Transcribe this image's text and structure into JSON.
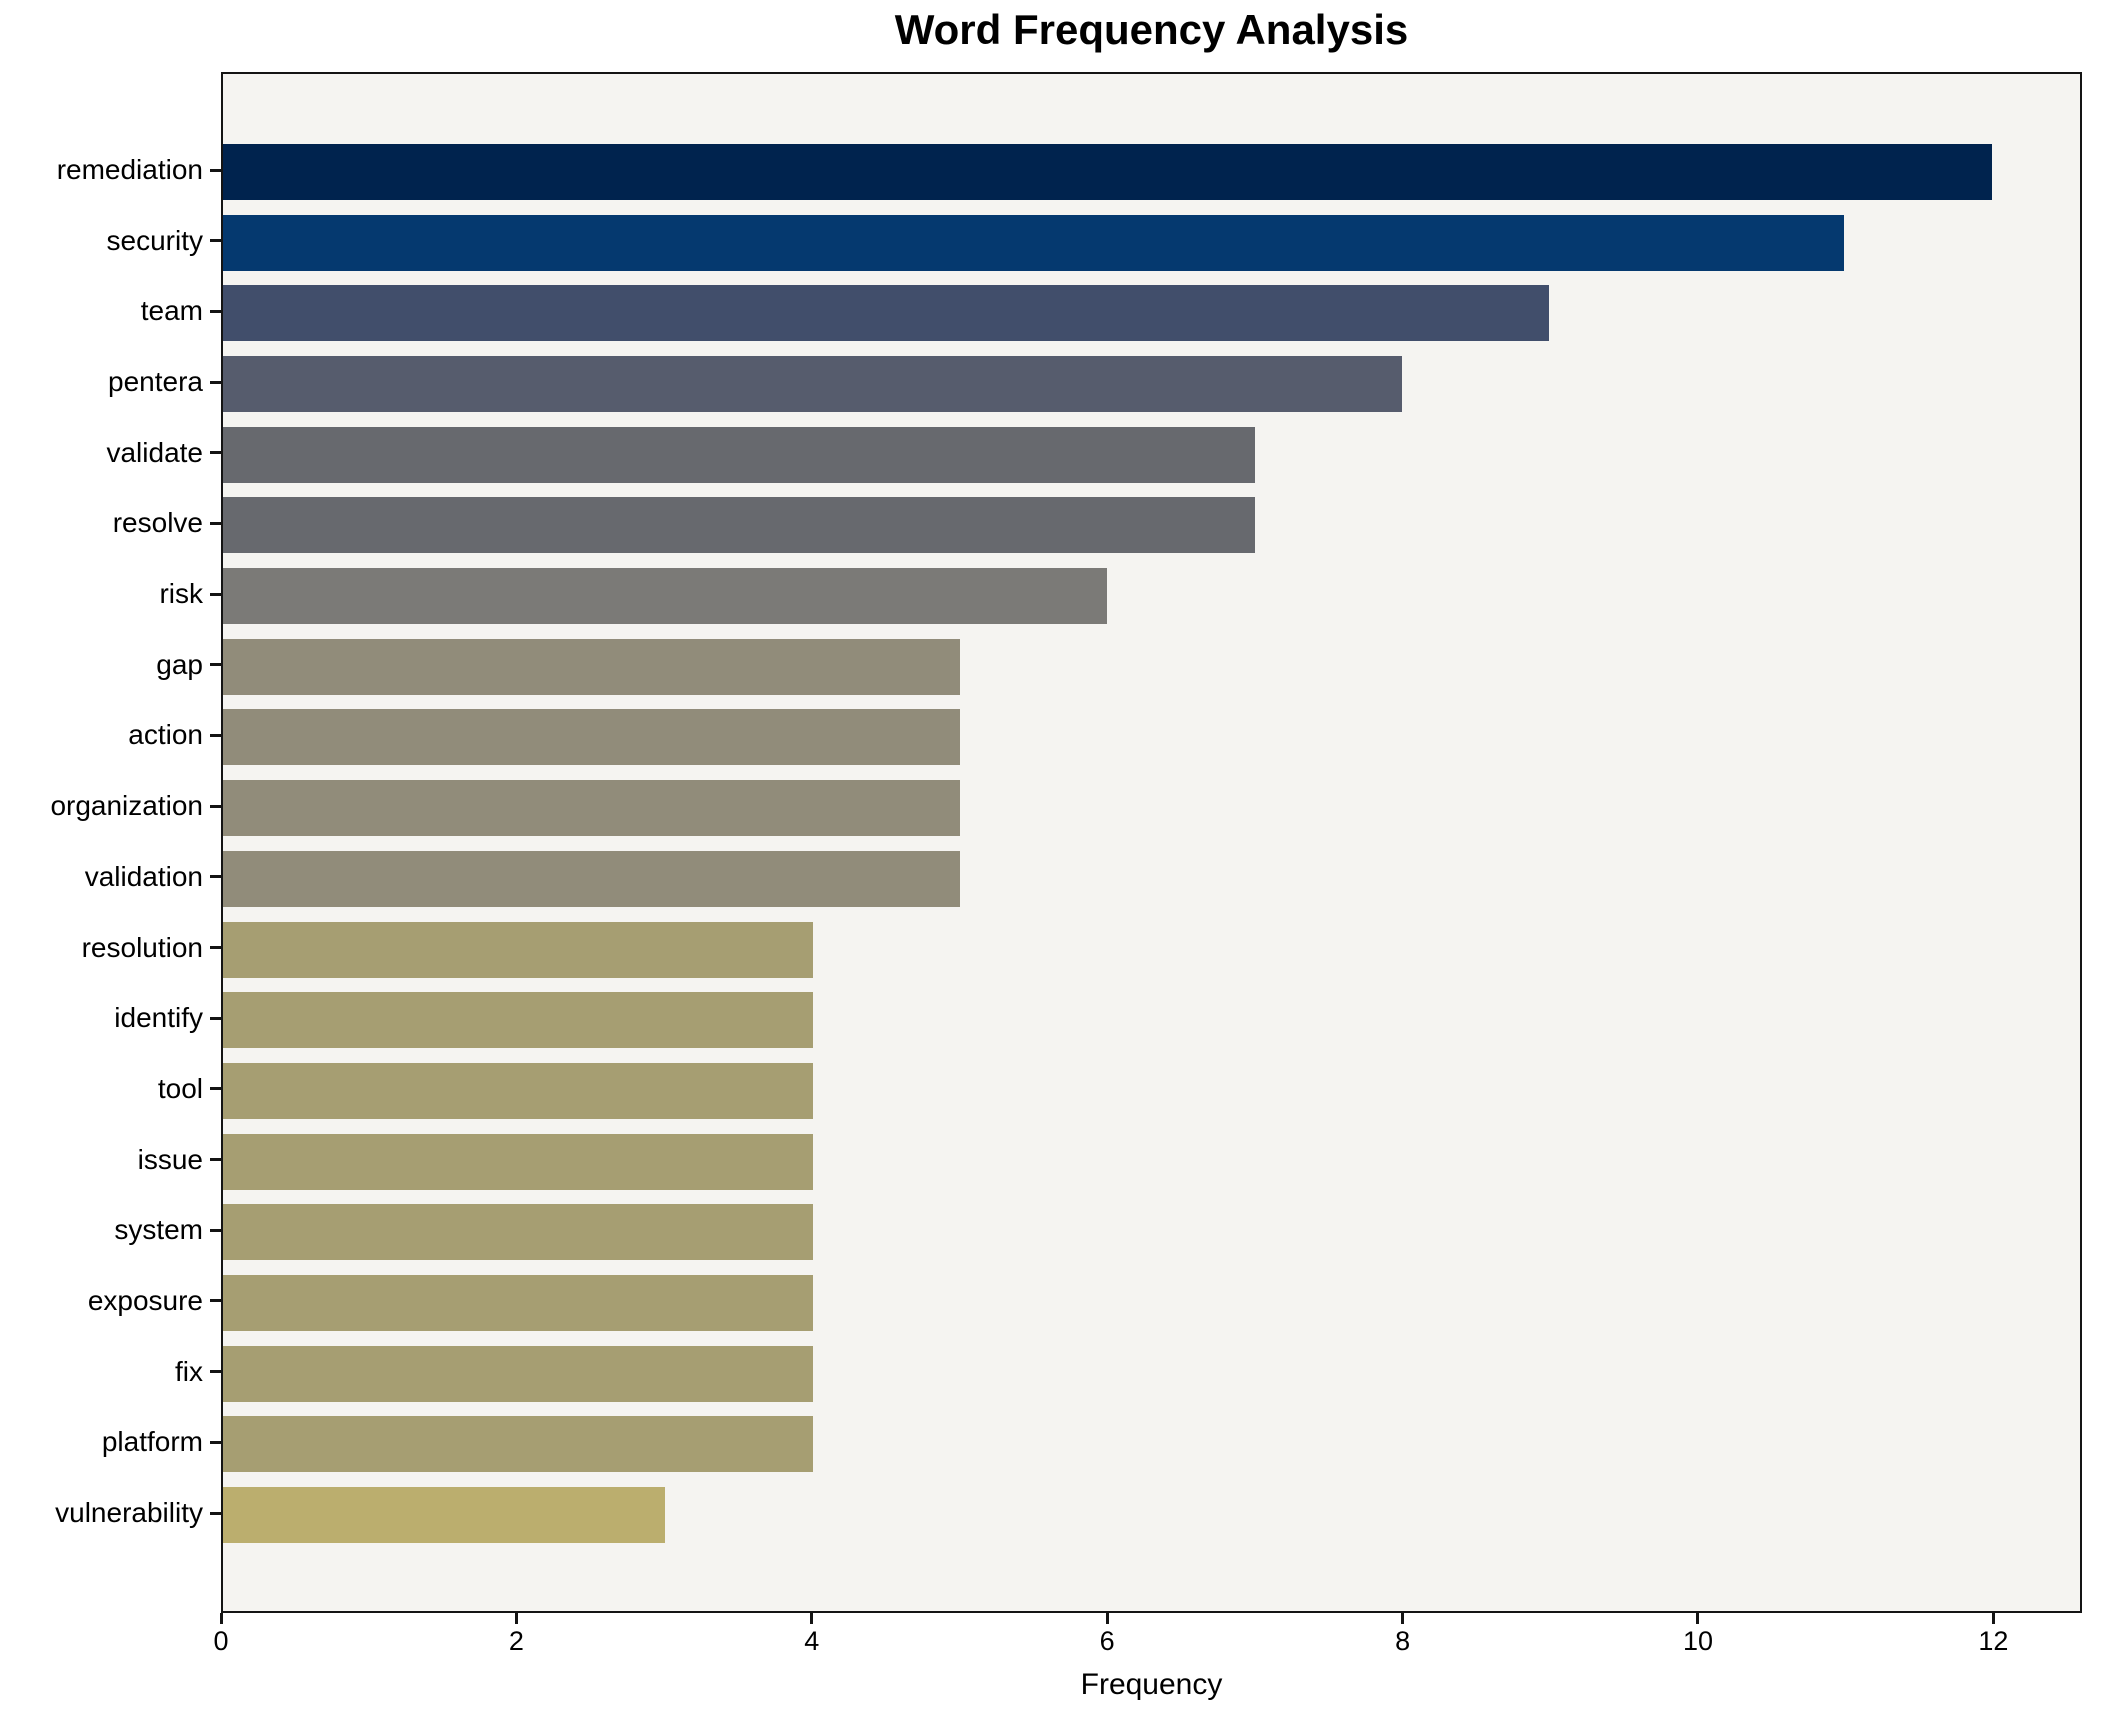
{
  "chart_data": {
    "type": "bar",
    "orientation": "horizontal",
    "title": "Word Frequency Analysis",
    "xlabel": "Frequency",
    "ylabel": "",
    "categories": [
      "remediation",
      "security",
      "team",
      "pentera",
      "validate",
      "resolve",
      "risk",
      "gap",
      "action",
      "organization",
      "validation",
      "resolution",
      "identify",
      "tool",
      "issue",
      "system",
      "exposure",
      "fix",
      "platform",
      "vulnerability"
    ],
    "values": [
      12,
      11,
      9,
      8,
      7,
      7,
      6,
      5,
      5,
      5,
      5,
      4,
      4,
      4,
      4,
      4,
      4,
      4,
      4,
      3
    ],
    "bar_colors": [
      "#00234E",
      "#05396F",
      "#414E6B",
      "#565C6D",
      "#67696E",
      "#67696E",
      "#7B7A77",
      "#918C7A",
      "#918C7A",
      "#918C7A",
      "#918C7A",
      "#A69E72",
      "#A69E72",
      "#A69E72",
      "#A69E72",
      "#A69E72",
      "#A69E72",
      "#A69E72",
      "#A69E72",
      "#BBAE6E"
    ],
    "xlim": [
      0,
      12.6
    ],
    "xticks": [
      0,
      2,
      4,
      6,
      8,
      10,
      12
    ],
    "grid": false,
    "legend": "none",
    "plot_background": "#f5f4f1",
    "figure_background": "#ffffff",
    "spine_color": "#141414"
  }
}
